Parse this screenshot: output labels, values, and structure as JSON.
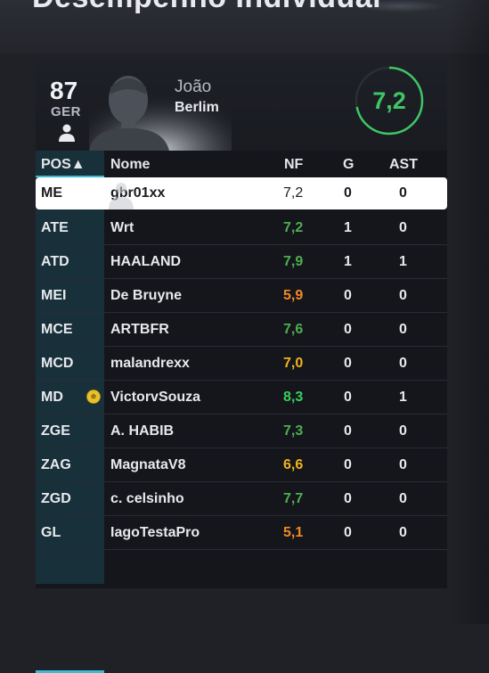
{
  "page": {
    "title": "Desempenho Individual"
  },
  "player": {
    "rating": "87",
    "nation": "GER",
    "first_name": "João",
    "team": "Berlim",
    "match_rating": "7,2"
  },
  "table": {
    "headers": {
      "pos": "POS▲",
      "name": "Nome",
      "nf": "NF",
      "g": "G",
      "ast": "AST"
    },
    "rows": [
      {
        "pos": "ME",
        "name": "gbr01xx",
        "nf": "7,2",
        "g": "0",
        "ast": "0",
        "nf_color": "#1a1b20",
        "selected": true
      },
      {
        "pos": "ATE",
        "name": "Wrt",
        "nf": "7,2",
        "g": "1",
        "ast": "0",
        "nf_color": "#4caf50"
      },
      {
        "pos": "ATD",
        "name": "HAALAND",
        "nf": "7,9",
        "g": "1",
        "ast": "1",
        "nf_color": "#4caf50"
      },
      {
        "pos": "MEI",
        "name": "De Bruyne",
        "nf": "5,9",
        "g": "0",
        "ast": "0",
        "nf_color": "#f08a24"
      },
      {
        "pos": "MCE",
        "name": "ARTBFR",
        "nf": "7,6",
        "g": "0",
        "ast": "0",
        "nf_color": "#4caf50"
      },
      {
        "pos": "MCD",
        "name": "malandrexx",
        "nf": "7,0",
        "g": "0",
        "ast": "0",
        "nf_color": "#f2b21b"
      },
      {
        "pos": "MD",
        "name": "VictorvSouza",
        "nf": "8,3",
        "g": "0",
        "ast": "1",
        "nf_color": "#38d15c",
        "has_ball_icon": true
      },
      {
        "pos": "ZGE",
        "name": "A. HABIB",
        "nf": "7,3",
        "g": "0",
        "ast": "0",
        "nf_color": "#4caf50"
      },
      {
        "pos": "ZAG",
        "name": "MagnataV8",
        "nf": "6,6",
        "g": "0",
        "ast": "0",
        "nf_color": "#f2b21b"
      },
      {
        "pos": "ZGD",
        "name": "c. celsinho",
        "nf": "7,7",
        "g": "0",
        "ast": "0",
        "nf_color": "#4caf50"
      },
      {
        "pos": "GL",
        "name": "IagoTestaPro",
        "nf": "5,1",
        "g": "0",
        "ast": "0",
        "nf_color": "#f08a24"
      }
    ]
  },
  "colors": {
    "accent": "#3fb9d6",
    "rating_ring": "#3fc566"
  },
  "icons": {
    "ball": "soccer-ball-icon",
    "person": "person-icon"
  }
}
